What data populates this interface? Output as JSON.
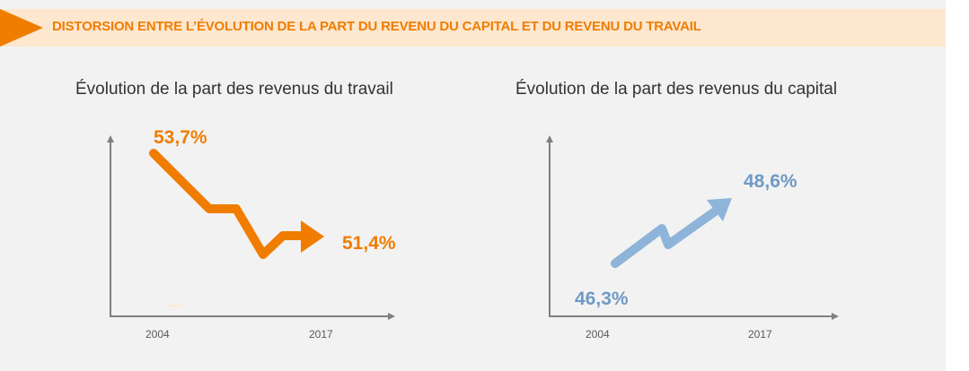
{
  "banner": {
    "title": "DISTORSION ENTRE L’ÉVOLUTION DE LA PART DU REVENU DU CAPITAL ET DU REVENU DU TRAVAIL"
  },
  "colors": {
    "accent": "#f07d00",
    "banner_bg": "#fde7cf",
    "blue": "#8eb4d9",
    "blue_text": "#6f9ac6",
    "axis": "#808080",
    "panel_bg": "#f2f2f2"
  },
  "chart_data": [
    {
      "type": "line",
      "title": "Évolution de la part des revenus du travail",
      "categories": [
        "2004",
        "2017"
      ],
      "series": [
        {
          "values": [
            53.7,
            51.4
          ]
        }
      ],
      "data_labels": [
        "53,7%",
        "51,4%"
      ],
      "trend": "down",
      "color": "#f07d00"
    },
    {
      "type": "line",
      "title": "Évolution de la part des revenus du capital",
      "categories": [
        "2004",
        "2017"
      ],
      "series": [
        {
          "values": [
            46.3,
            48.6
          ]
        }
      ],
      "data_labels": [
        "46,3%",
        "48,6%"
      ],
      "trend": "up",
      "color": "#8eb4d9"
    }
  ]
}
